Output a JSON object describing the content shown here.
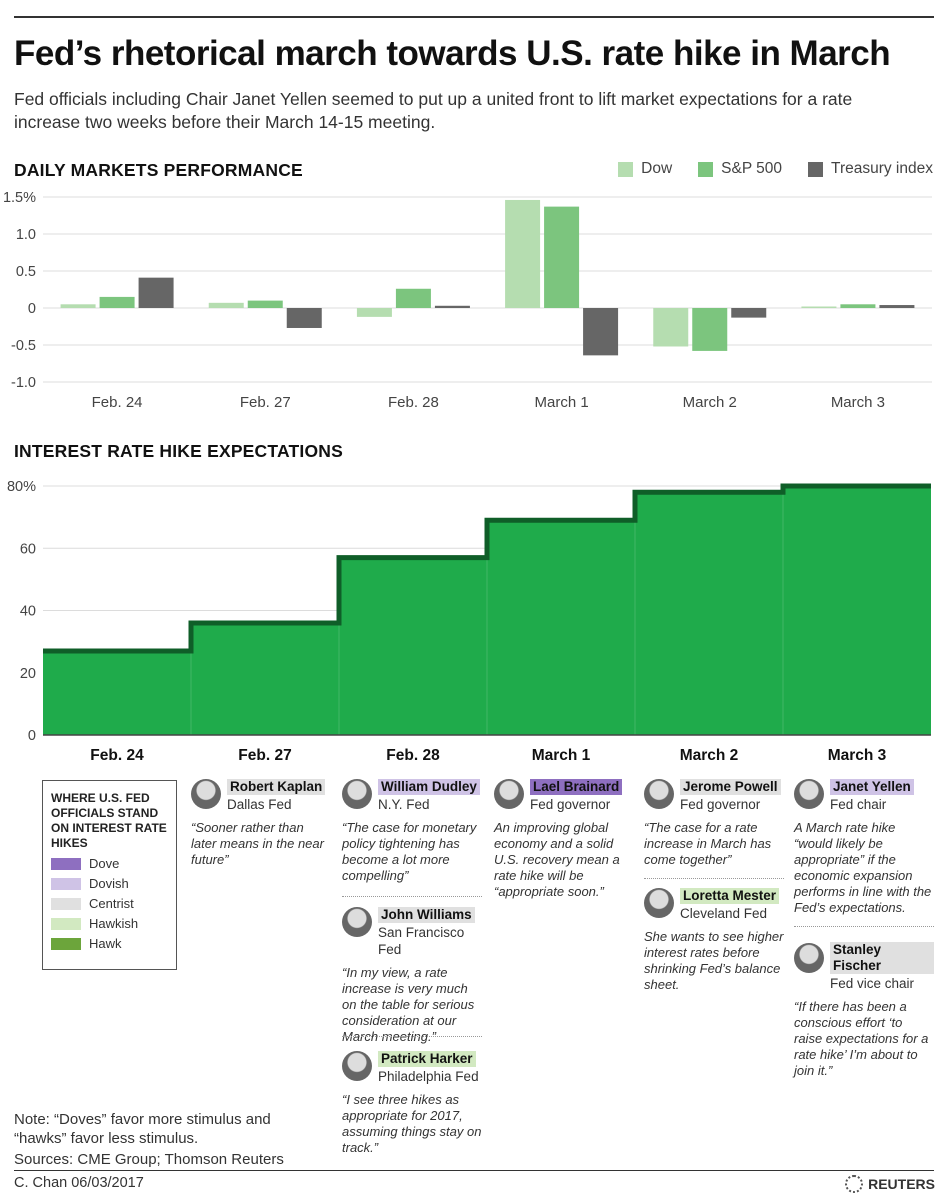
{
  "title": "Fed’s rhetorical march towards U.S. rate hike in March",
  "subtitle": "Fed officials including Chair Janet Yellen seemed to put up a united front to lift market expectations for a rate increase two weeks before their March 14-15 meeting.",
  "colors": {
    "dow": "#b5ddb0",
    "sp500": "#7cc57e",
    "treasury": "#666666",
    "area": "#1fab4b",
    "step_line": "#0f5e28",
    "dove": "#8e6fc0",
    "dovish": "#cfc3e6",
    "centrist": "#e0e0e0",
    "hawkish": "#d2e9c1",
    "hawk": "#6ca53b"
  },
  "chart_data": [
    {
      "type": "bar",
      "title": "DAILY MARKETS PERFORMANCE",
      "categories": [
        "Feb. 24",
        "Feb. 27",
        "Feb. 28",
        "March 1",
        "March 2",
        "March 3"
      ],
      "series": [
        {
          "name": "Dow",
          "values": [
            0.05,
            0.07,
            -0.12,
            1.46,
            -0.52,
            0.02
          ]
        },
        {
          "name": "S&P 500",
          "values": [
            0.15,
            0.1,
            0.26,
            1.37,
            -0.58,
            0.05
          ]
        },
        {
          "name": "Treasury index",
          "values": [
            0.41,
            -0.27,
            0.03,
            -0.64,
            -0.13,
            0.04
          ]
        }
      ],
      "yticks": [
        "1.5%",
        "1.0",
        "0.5",
        "0",
        "-0.5",
        "-1.0"
      ],
      "ylim": [
        -1.0,
        1.5
      ],
      "legend": "top-right",
      "grid": true
    },
    {
      "type": "area",
      "title": "INTEREST RATE HIKE EXPECTATIONS",
      "categories": [
        "Feb. 24",
        "Feb. 27",
        "Feb. 28",
        "March 1",
        "March 2",
        "March 3"
      ],
      "values": [
        27,
        36,
        57,
        69,
        78,
        80
      ],
      "yticks": [
        "80%",
        "60",
        "40",
        "20",
        "0"
      ],
      "ylim": [
        0,
        80
      ],
      "step": true,
      "grid": true
    }
  ],
  "fed_legend": {
    "title": "WHERE U.S. FED OFFICIALS STAND ON INTEREST RATE HIKES",
    "items": [
      {
        "label": "Dove",
        "color": "#8e6fc0"
      },
      {
        "label": "Dovish",
        "color": "#cfc3e6"
      },
      {
        "label": "Centrist",
        "color": "#e0e0e0"
      },
      {
        "label": "Hawkish",
        "color": "#d2e9c1"
      },
      {
        "label": "Hawk",
        "color": "#6ca53b"
      }
    ]
  },
  "officials": [
    {
      "name": "Robert Kaplan",
      "role": "Dallas Fed",
      "stance": "centrist",
      "quote": "“Sooner rather than later means in the near future”"
    },
    {
      "name": "William Dudley",
      "role": "N.Y. Fed",
      "stance": "dovish",
      "quote": "“The case for monetary policy tightening has become a lot more compelling”"
    },
    {
      "name": "John Williams",
      "role": "San Francisco Fed",
      "stance": "centrist",
      "quote": "“In my view, a rate increase is very much on the table for serious consideration at our March meeting.”"
    },
    {
      "name": "Patrick Harker",
      "role": "Philadelphia Fed",
      "stance": "hawkish",
      "quote": "“I see three hikes as appropriate for 2017, assuming things stay on track.”"
    },
    {
      "name": "Lael Brainard",
      "role": "Fed governor",
      "stance": "dove",
      "quote": "An improving global economy and a solid U.S. recovery mean a rate hike will be “appropriate soon.”"
    },
    {
      "name": "Jerome Powell",
      "role": "Fed governor",
      "stance": "centrist",
      "quote": "“The case for a rate increase in March has come together”"
    },
    {
      "name": "Loretta Mester",
      "role": "Cleveland Fed",
      "stance": "hawkish",
      "quote": "She wants to see higher interest rates before shrinking Fed’s balance sheet."
    },
    {
      "name": "Janet Yellen",
      "role": "Fed chair",
      "stance": "dovish",
      "quote": "A March rate hike “would likely be appropriate” if the economic expansion performs in line with the Fed’s expectations."
    },
    {
      "name": "Stanley Fischer",
      "role": "Fed vice chair",
      "stance": "centrist",
      "quote": "“If there has been a conscious effort ‘to raise expectations for a rate hike’ I’m about to join it.”"
    }
  ],
  "note": "Note: “Doves” favor more stimulus and “hawks” favor less stimulus.",
  "sources": "Sources: CME Group; Thomson Reuters",
  "credit": "C. Chan 06/03/2017",
  "brand": "REUTERS"
}
